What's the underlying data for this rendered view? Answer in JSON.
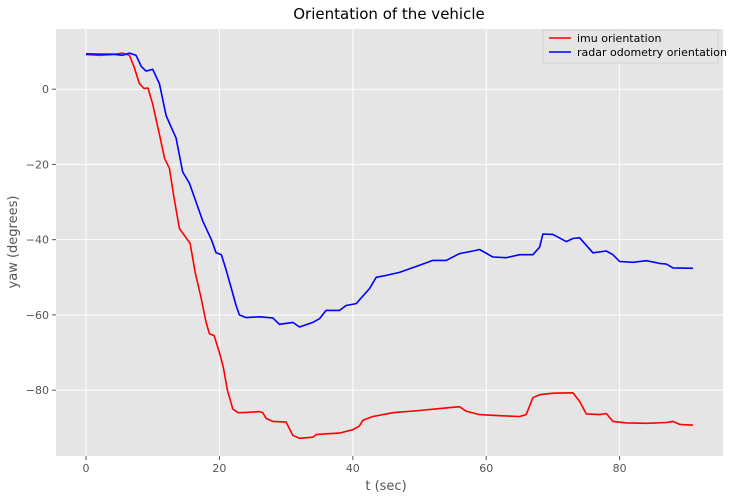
{
  "chart_data": {
    "type": "line",
    "title": "Orientation of the vehicle",
    "xlabel": "t (sec)",
    "ylabel": "yaw (degrees)",
    "xlim": [
      -4.5,
      95.5
    ],
    "ylim": [
      -97.5,
      16
    ],
    "x_ticks": [
      0,
      20,
      40,
      60,
      80
    ],
    "y_ticks": [
      0,
      -20,
      -40,
      -60,
      -80
    ],
    "grid": true,
    "legend_position": "top-right",
    "series": [
      {
        "name": "imu orientation",
        "color": "#ff0000",
        "points": [
          [
            0,
            9.2
          ],
          [
            2,
            9.0
          ],
          [
            4,
            9.2
          ],
          [
            5.5,
            9.6
          ],
          [
            6.5,
            9.0
          ],
          [
            7.2,
            6.0
          ],
          [
            8,
            1.5
          ],
          [
            8.7,
            0.2
          ],
          [
            9.3,
            0.3
          ],
          [
            10,
            -4
          ],
          [
            11,
            -12
          ],
          [
            11.8,
            -18.5
          ],
          [
            12.5,
            -21
          ],
          [
            13.2,
            -29
          ],
          [
            14,
            -37
          ],
          [
            15,
            -39.5
          ],
          [
            15.6,
            -41
          ],
          [
            16.4,
            -49
          ],
          [
            17.2,
            -55
          ],
          [
            18,
            -62
          ],
          [
            18.5,
            -65
          ],
          [
            19.2,
            -65.5
          ],
          [
            20,
            -70
          ],
          [
            20.6,
            -74
          ],
          [
            21.2,
            -80
          ],
          [
            22,
            -85
          ],
          [
            22.8,
            -86
          ],
          [
            24,
            -85.9
          ],
          [
            26,
            -85.7
          ],
          [
            26.5,
            -86
          ],
          [
            27,
            -87.5
          ],
          [
            28,
            -88.3
          ],
          [
            30,
            -88.5
          ],
          [
            31,
            -92
          ],
          [
            32,
            -92.8
          ],
          [
            34,
            -92.5
          ],
          [
            34.5,
            -91.8
          ],
          [
            36,
            -91.6
          ],
          [
            38,
            -91.4
          ],
          [
            40,
            -90.5
          ],
          [
            41,
            -89.5
          ],
          [
            41.5,
            -88
          ],
          [
            43,
            -87
          ],
          [
            46,
            -86
          ],
          [
            50,
            -85.4
          ],
          [
            53,
            -84.9
          ],
          [
            56,
            -84.4
          ],
          [
            57,
            -85.6
          ],
          [
            59,
            -86.5
          ],
          [
            62,
            -86.8
          ],
          [
            65,
            -87
          ],
          [
            66,
            -86.5
          ],
          [
            67,
            -82
          ],
          [
            68,
            -81.2
          ],
          [
            70,
            -80.8
          ],
          [
            73,
            -80.7
          ],
          [
            74,
            -83
          ],
          [
            75,
            -86.3
          ],
          [
            77,
            -86.5
          ],
          [
            78,
            -86.2
          ],
          [
            79,
            -88.3
          ],
          [
            81,
            -88.7
          ],
          [
            84,
            -88.8
          ],
          [
            87,
            -88.6
          ],
          [
            88,
            -88.3
          ],
          [
            89,
            -89.1
          ],
          [
            91,
            -89.3
          ]
        ]
      },
      {
        "name": "radar odometry orientation",
        "color": "#0000ff",
        "points": [
          [
            0,
            9.4
          ],
          [
            2,
            9.3
          ],
          [
            4,
            9.3
          ],
          [
            5.5,
            9.0
          ],
          [
            6.5,
            9.6
          ],
          [
            7.5,
            9.0
          ],
          [
            8.3,
            6.0
          ],
          [
            9,
            4.8
          ],
          [
            10,
            5.3
          ],
          [
            11,
            1.5
          ],
          [
            12,
            -7
          ],
          [
            13,
            -11
          ],
          [
            13.5,
            -13
          ],
          [
            14.5,
            -22
          ],
          [
            15.5,
            -25
          ],
          [
            16.5,
            -30
          ],
          [
            17.5,
            -35
          ],
          [
            18.8,
            -40
          ],
          [
            19.5,
            -43.5
          ],
          [
            20.3,
            -44
          ],
          [
            21,
            -48
          ],
          [
            21.8,
            -53
          ],
          [
            22.5,
            -57.5
          ],
          [
            23,
            -60
          ],
          [
            24,
            -60.7
          ],
          [
            26,
            -60.5
          ],
          [
            28,
            -60.8
          ],
          [
            29,
            -62.5
          ],
          [
            31,
            -62
          ],
          [
            32,
            -63.2
          ],
          [
            34,
            -62
          ],
          [
            35,
            -61
          ],
          [
            36,
            -58.8
          ],
          [
            38,
            -58.8
          ],
          [
            39,
            -57.5
          ],
          [
            40.5,
            -57
          ],
          [
            41.5,
            -55
          ],
          [
            42.5,
            -53
          ],
          [
            43.5,
            -50
          ],
          [
            45,
            -49.5
          ],
          [
            47,
            -48.7
          ],
          [
            50,
            -46.8
          ],
          [
            52,
            -45.5
          ],
          [
            54,
            -45.5
          ],
          [
            56,
            -43.7
          ],
          [
            58,
            -43
          ],
          [
            59,
            -42.6
          ],
          [
            61,
            -44.6
          ],
          [
            63,
            -44.8
          ],
          [
            65,
            -44
          ],
          [
            67,
            -44
          ],
          [
            68,
            -42
          ],
          [
            68.5,
            -38.5
          ],
          [
            70,
            -38.6
          ],
          [
            72,
            -40.5
          ],
          [
            73,
            -39.7
          ],
          [
            74,
            -39.5
          ],
          [
            75,
            -41.5
          ],
          [
            76,
            -43.5
          ],
          [
            78,
            -43
          ],
          [
            79,
            -44
          ],
          [
            80,
            -45.8
          ],
          [
            82,
            -46
          ],
          [
            84,
            -45.6
          ],
          [
            86,
            -46.3
          ],
          [
            87,
            -46.5
          ],
          [
            88,
            -47.5
          ],
          [
            91,
            -47.6
          ]
        ]
      }
    ]
  }
}
